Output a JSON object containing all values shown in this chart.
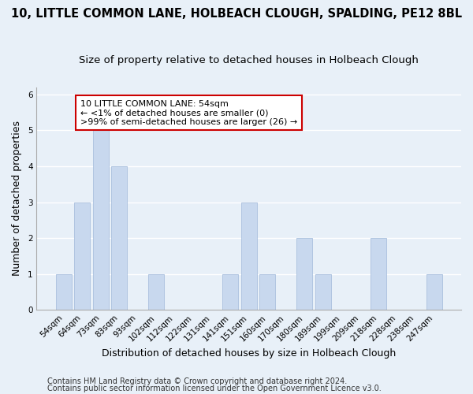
{
  "title": "10, LITTLE COMMON LANE, HOLBEACH CLOUGH, SPALDING, PE12 8BL",
  "subtitle": "Size of property relative to detached houses in Holbeach Clough",
  "xlabel": "Distribution of detached houses by size in Holbeach Clough",
  "ylabel": "Number of detached properties",
  "categories": [
    "54sqm",
    "64sqm",
    "73sqm",
    "83sqm",
    "93sqm",
    "102sqm",
    "112sqm",
    "122sqm",
    "131sqm",
    "141sqm",
    "151sqm",
    "160sqm",
    "170sqm",
    "180sqm",
    "189sqm",
    "199sqm",
    "209sqm",
    "218sqm",
    "228sqm",
    "238sqm",
    "247sqm"
  ],
  "values": [
    1,
    3,
    5,
    4,
    0,
    1,
    0,
    0,
    0,
    1,
    3,
    1,
    0,
    2,
    1,
    0,
    0,
    2,
    0,
    0,
    1
  ],
  "bar_color": "#c8d8ee",
  "bar_edgecolor": "#aac0de",
  "annotation_text": "10 LITTLE COMMON LANE: 54sqm\n← <1% of detached houses are smaller (0)\n>99% of semi-detached houses are larger (26) →",
  "annotation_box_color": "#ffffff",
  "annotation_box_edgecolor": "#cc0000",
  "ylim": [
    0,
    6.2
  ],
  "yticks": [
    0,
    1,
    2,
    3,
    4,
    5,
    6
  ],
  "footnote1": "Contains HM Land Registry data © Crown copyright and database right 2024.",
  "footnote2": "Contains public sector information licensed under the Open Government Licence v3.0.",
  "background_color": "#e8f0f8",
  "plot_background_color": "#e8f0f8",
  "grid_color": "#ffffff",
  "title_fontsize": 10.5,
  "subtitle_fontsize": 9.5,
  "xlabel_fontsize": 9,
  "ylabel_fontsize": 9,
  "tick_fontsize": 7.5,
  "annotation_fontsize": 8,
  "footnote_fontsize": 7
}
